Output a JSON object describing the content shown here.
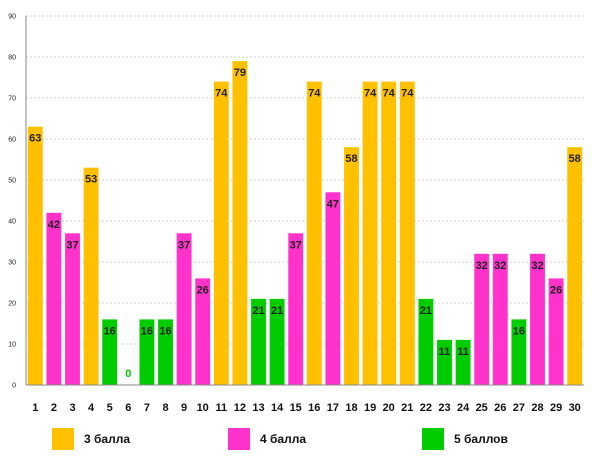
{
  "chart_data": {
    "type": "bar",
    "categories": [
      "1",
      "2",
      "3",
      "4",
      "5",
      "6",
      "7",
      "8",
      "9",
      "10",
      "11",
      "12",
      "13",
      "14",
      "15",
      "16",
      "17",
      "18",
      "19",
      "20",
      "21",
      "22",
      "23",
      "24",
      "25",
      "26",
      "27",
      "28",
      "29",
      "30"
    ],
    "values": [
      63,
      42,
      37,
      53,
      16,
      0,
      16,
      16,
      37,
      26,
      74,
      79,
      21,
      21,
      37,
      74,
      47,
      58,
      74,
      74,
      74,
      21,
      11,
      11,
      32,
      32,
      16,
      32,
      26,
      58
    ],
    "groups": [
      3,
      4,
      4,
      3,
      5,
      5,
      5,
      5,
      4,
      4,
      3,
      3,
      5,
      5,
      4,
      3,
      4,
      3,
      3,
      3,
      3,
      5,
      5,
      5,
      4,
      4,
      5,
      4,
      4,
      3
    ],
    "ylim": [
      0,
      90
    ],
    "yticks": [
      "0",
      "10",
      "20",
      "30",
      "40",
      "50",
      "60",
      "70",
      "80",
      "90"
    ],
    "grid": true,
    "legend_position": "bottom",
    "series": [
      {
        "key": 3,
        "name": "3 балла",
        "color": "#FFC000"
      },
      {
        "key": 4,
        "name": "4 балла",
        "color": "#FF33CC"
      },
      {
        "key": 5,
        "name": "5 баллов",
        "color": "#00CC00"
      }
    ]
  }
}
